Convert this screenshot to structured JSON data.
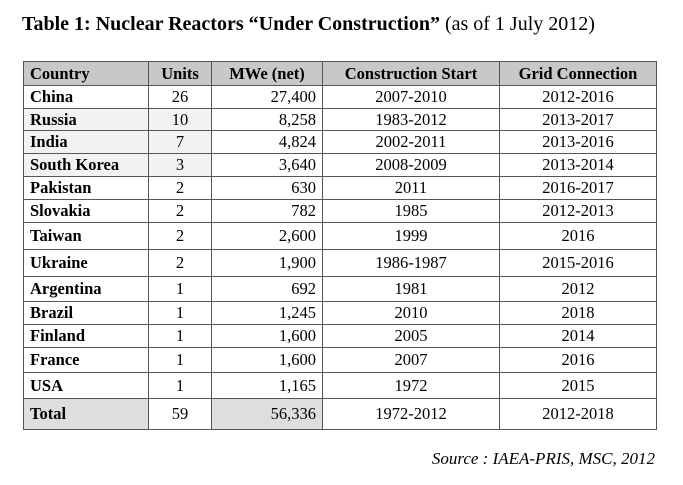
{
  "title": {
    "bold": "Table 1: Nuclear Reactors “Under Construction”",
    "normal": " (as of 1 July 2012)"
  },
  "table": {
    "headers": [
      "Country",
      "Units",
      "MWe (net)",
      "Construction Start",
      "Grid Connection"
    ],
    "rows": [
      [
        "China",
        "26",
        "27,400",
        "2007-2010",
        "2012-2016"
      ],
      [
        "Russia",
        "10",
        "8,258",
        "1983-2012",
        "2013-2017"
      ],
      [
        "India",
        "7",
        "4,824",
        "2002-2011",
        "2013-2016"
      ],
      [
        "South Korea",
        "3",
        "3,640",
        "2008-2009",
        "2013-2014"
      ],
      [
        "Pakistan",
        "2",
        "630",
        "2011",
        "2016-2017"
      ],
      [
        "Slovakia",
        "2",
        "782",
        "1985",
        "2012-2013"
      ],
      [
        "Taiwan",
        "2",
        "2,600",
        "1999",
        "2016"
      ],
      [
        "Ukraine",
        "2",
        "1,900",
        "1986-1987",
        "2015-2016"
      ],
      [
        "Argentina",
        "1",
        "692",
        "1981",
        "2012"
      ],
      [
        "Brazil",
        "1",
        "1,245",
        "2010",
        "2018"
      ],
      [
        "Finland",
        "1",
        "1,600",
        "2005",
        "2014"
      ],
      [
        "France",
        "1",
        "1,600",
        "2007",
        "2016"
      ],
      [
        "USA",
        "1",
        "1,165",
        "1972",
        "2015"
      ]
    ],
    "total": [
      "Total",
      "59",
      "56,336",
      "1972-2012",
      "2012-2018"
    ]
  },
  "source": "Source : IAEA-PRIS, MSC, 2012"
}
